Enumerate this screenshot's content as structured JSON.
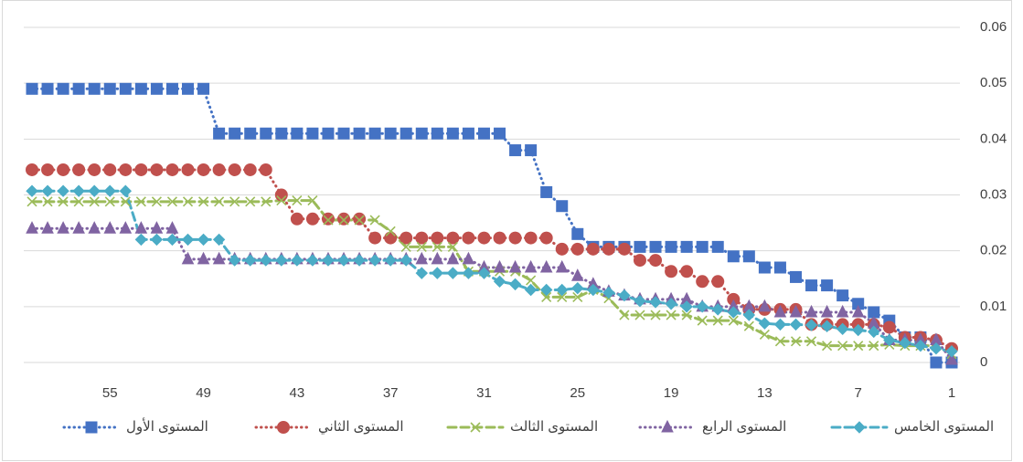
{
  "chart_data": {
    "type": "line",
    "categories": [
      "1",
      null,
      null,
      null,
      null,
      null,
      "7",
      null,
      null,
      null,
      null,
      null,
      "13",
      null,
      null,
      null,
      null,
      null,
      "19",
      null,
      null,
      null,
      null,
      null,
      "25",
      null,
      null,
      null,
      null,
      null,
      "31",
      null,
      null,
      null,
      null,
      null,
      "37",
      null,
      null,
      null,
      null,
      null,
      "43",
      null,
      null,
      null,
      null,
      null,
      "49",
      null,
      null,
      null,
      null,
      null,
      "55",
      null,
      null,
      null,
      null,
      null
    ],
    "x_reversed": true,
    "ylim": [
      0,
      0.06
    ],
    "yticks": [
      0,
      0.01,
      0.02,
      0.03,
      0.04,
      0.05,
      0.06
    ],
    "grid": true,
    "legend": "bottom",
    "series": [
      {
        "name": "المستوى الأول",
        "color": "#4472c4",
        "marker": "square",
        "line_style": "dotted",
        "values": [
          0,
          0,
          0.0045,
          0.0045,
          0.0075,
          0.009,
          0.0105,
          0.012,
          0.0138,
          0.0138,
          0.0153,
          0.017,
          0.017,
          0.019,
          0.019,
          0.0207,
          0.0207,
          0.0207,
          0.0207,
          0.0207,
          0.0207,
          0.0207,
          0.0207,
          0.0207,
          0.023,
          0.028,
          0.0305,
          0.038,
          0.038,
          0.041,
          0.041,
          0.041,
          0.041,
          0.041,
          0.041,
          0.041,
          0.041,
          0.041,
          0.041,
          0.041,
          0.041,
          0.041,
          0.041,
          0.041,
          0.041,
          0.041,
          0.041,
          0.041,
          0.049,
          0.049,
          0.049,
          0.049,
          0.049,
          0.049,
          0.049,
          0.049,
          0.049,
          0.049,
          0.049,
          0.049
        ]
      },
      {
        "name": "المستوى الثاني",
        "color": "#c0504d",
        "marker": "circle",
        "line_style": "dotted",
        "values": [
          0.0025,
          0.004,
          0.0045,
          0.0045,
          0.0063,
          0.0068,
          0.0068,
          0.0068,
          0.0068,
          0.0068,
          0.0095,
          0.0095,
          0.0095,
          0.0095,
          0.0113,
          0.0145,
          0.0145,
          0.0163,
          0.0163,
          0.0183,
          0.0183,
          0.0203,
          0.0203,
          0.0203,
          0.0203,
          0.0203,
          0.0223,
          0.0223,
          0.0223,
          0.0223,
          0.0223,
          0.0223,
          0.0223,
          0.0223,
          0.0223,
          0.0223,
          0.0223,
          0.0223,
          0.0257,
          0.0257,
          0.0257,
          0.0257,
          0.0257,
          0.03,
          0.0345,
          0.0345,
          0.0345,
          0.0345,
          0.0345,
          0.0345,
          0.0345,
          0.0345,
          0.0345,
          0.0345,
          0.0345,
          0.0345,
          0.0345,
          0.0345,
          0.0345,
          0.0345
        ]
      },
      {
        "name": "المستوى الثالث",
        "color": "#9bbb59",
        "marker": "x",
        "line_style": "dashed",
        "values": [
          0.0015,
          0.003,
          0.003,
          0.003,
          0.0032,
          0.003,
          0.003,
          0.003,
          0.003,
          0.0038,
          0.0038,
          0.0038,
          0.005,
          0.0065,
          0.0075,
          0.0075,
          0.0075,
          0.0085,
          0.0085,
          0.0085,
          0.0085,
          0.0085,
          0.0115,
          0.013,
          0.0117,
          0.0117,
          0.0117,
          0.0147,
          0.0163,
          0.0163,
          0.0163,
          0.0163,
          0.0207,
          0.0207,
          0.0207,
          0.0207,
          0.0235,
          0.0255,
          0.0255,
          0.0255,
          0.0255,
          0.029,
          0.029,
          0.029,
          0.0288,
          0.0288,
          0.0288,
          0.0288,
          0.0288,
          0.0288,
          0.0288,
          0.0288,
          0.0288,
          0.0288,
          0.0288,
          0.0288,
          0.0288,
          0.0288,
          0.0288,
          0.0288
        ]
      },
      {
        "name": "المستوى الرابع",
        "color": "#8064a2",
        "marker": "triangle",
        "line_style": "dotted",
        "values": [
          0.0005,
          0.004,
          0.004,
          0.004,
          0.004,
          0.007,
          0.009,
          0.009,
          0.009,
          0.009,
          0.009,
          0.009,
          0.01,
          0.01,
          0.01,
          0.01,
          0.01,
          0.0113,
          0.0113,
          0.0113,
          0.0113,
          0.012,
          0.0127,
          0.014,
          0.0155,
          0.017,
          0.017,
          0.017,
          0.017,
          0.017,
          0.017,
          0.0185,
          0.0185,
          0.0185,
          0.0185,
          0.0185,
          0.0185,
          0.0185,
          0.0185,
          0.0185,
          0.0185,
          0.0185,
          0.0185,
          0.0185,
          0.0185,
          0.0185,
          0.0185,
          0.0185,
          0.0185,
          0.0185,
          0.024,
          0.024,
          0.024,
          0.024,
          0.024,
          0.024,
          0.024,
          0.024,
          0.024,
          0.024
        ]
      },
      {
        "name": "المستوى الخامس",
        "color": "#4bacc6",
        "marker": "diamond",
        "line_style": "dashed",
        "values": [
          0.002,
          0.0025,
          0.003,
          0.0035,
          0.004,
          0.0055,
          0.0058,
          0.006,
          0.0065,
          0.0067,
          0.0068,
          0.0068,
          0.007,
          0.0085,
          0.009,
          0.0095,
          0.01,
          0.01,
          0.0105,
          0.0108,
          0.011,
          0.012,
          0.0125,
          0.013,
          0.0133,
          0.013,
          0.013,
          0.013,
          0.014,
          0.0145,
          0.016,
          0.016,
          0.016,
          0.016,
          0.016,
          0.0183,
          0.0183,
          0.0183,
          0.0183,
          0.0183,
          0.0183,
          0.0183,
          0.0183,
          0.0183,
          0.0183,
          0.0183,
          0.0183,
          0.022,
          0.022,
          0.022,
          0.022,
          0.022,
          0.022,
          0.0307,
          0.0307,
          0.0307,
          0.0307,
          0.0307,
          0.0307,
          0.0307
        ]
      }
    ]
  }
}
